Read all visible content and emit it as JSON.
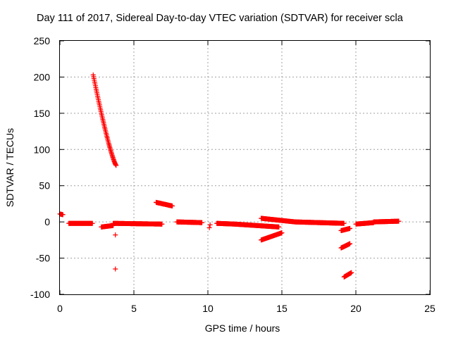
{
  "chart_data": {
    "type": "scatter",
    "title": "Day 111 of 2017, Sidereal Day-to-day VTEC variation (SDTVAR) for receiver scla",
    "xlabel": "GPS time / hours",
    "ylabel": "SDTVAR / TECUs",
    "xlim": [
      0,
      25
    ],
    "ylim": [
      -100,
      250
    ],
    "xticks": [
      "0",
      "5",
      "10",
      "15",
      "20",
      "25"
    ],
    "yticks": [
      "-100",
      "-50",
      "0",
      "50",
      "100",
      "150",
      "200",
      "250"
    ],
    "grid": true,
    "marker": "+",
    "series_color": "#ff0000",
    "segments": [
      {
        "x0": 0.0,
        "x1": 0.2,
        "y0": 11,
        "y1": 10
      },
      {
        "x0": 0.6,
        "x1": 2.2,
        "y0": -2,
        "y1": -2
      },
      {
        "x0": 2.25,
        "x1": 3.8,
        "y0": 203,
        "y1": 78,
        "curve": true
      },
      {
        "x0": 2.8,
        "x1": 3.6,
        "y0": -7,
        "y1": -5
      },
      {
        "x0": 3.6,
        "x1": 6.9,
        "y0": -2,
        "y1": -3
      },
      {
        "x0": 6.5,
        "x1": 7.6,
        "y0": 27,
        "y1": 22
      },
      {
        "x0": 7.9,
        "x1": 9.6,
        "y0": 0,
        "y1": -1
      },
      {
        "x0": 10.6,
        "x1": 11.8,
        "y0": -2,
        "y1": -3
      },
      {
        "x0": 11.8,
        "x1": 14.8,
        "y0": -3,
        "y1": -7
      },
      {
        "x0": 13.6,
        "x1": 15.9,
        "y0": 5,
        "y1": 0
      },
      {
        "x0": 13.6,
        "x1": 15.0,
        "y0": -25,
        "y1": -15
      },
      {
        "x0": 15.9,
        "x1": 19.2,
        "y0": 0,
        "y1": -2
      },
      {
        "x0": 19.0,
        "x1": 19.6,
        "y0": -12,
        "y1": -9
      },
      {
        "x0": 19.0,
        "x1": 19.6,
        "y0": -36,
        "y1": -30
      },
      {
        "x0": 19.2,
        "x1": 19.7,
        "y0": -76,
        "y1": -70
      },
      {
        "x0": 20.0,
        "x1": 21.2,
        "y0": -3,
        "y1": -1
      },
      {
        "x0": 21.2,
        "x1": 22.9,
        "y0": 0,
        "y1": 1
      }
    ],
    "points": [
      {
        "x": 3.75,
        "y": -18
      },
      {
        "x": 3.75,
        "y": -65
      },
      {
        "x": 10.1,
        "y": -8
      },
      {
        "x": 10.15,
        "y": -4
      }
    ]
  }
}
